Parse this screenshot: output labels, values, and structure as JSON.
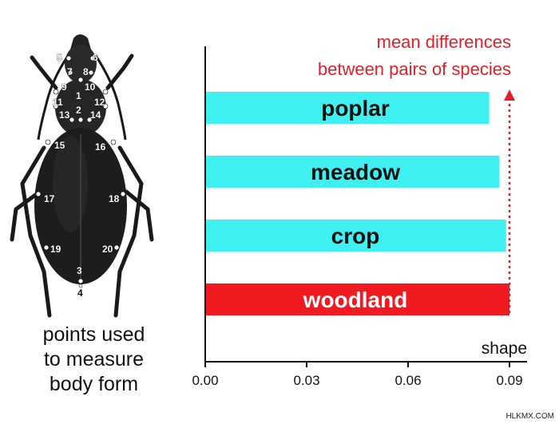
{
  "beetle": {
    "caption_lines": [
      "points used",
      "to measure",
      "body form"
    ],
    "landmarks": [
      "1",
      "2",
      "3",
      "4",
      "5",
      "6",
      "7",
      "8",
      "9",
      "10",
      "11",
      "12",
      "13",
      "14",
      "15",
      "16",
      "17",
      "18",
      "19",
      "20"
    ]
  },
  "chart_data": {
    "type": "bar",
    "orientation": "horizontal",
    "categories": [
      "poplar",
      "meadow",
      "crop",
      "woodland"
    ],
    "values": [
      0.084,
      0.087,
      0.089,
      0.09
    ],
    "bar_colors": [
      "#3ff0f0",
      "#3ff0f0",
      "#3ff0f0",
      "#f01a20"
    ],
    "label_colors": [
      "#111111",
      "#111111",
      "#111111",
      "#ffffff"
    ],
    "xlabel": "shape",
    "xlim": [
      0,
      0.09
    ],
    "xticks": [
      "0.00",
      "0.03",
      "0.06",
      "0.09"
    ],
    "annotation": [
      "mean differences",
      "between pairs of species"
    ],
    "annotation_color": "#e0202a",
    "grid": false
  },
  "watermark": "HLKMX.COM"
}
